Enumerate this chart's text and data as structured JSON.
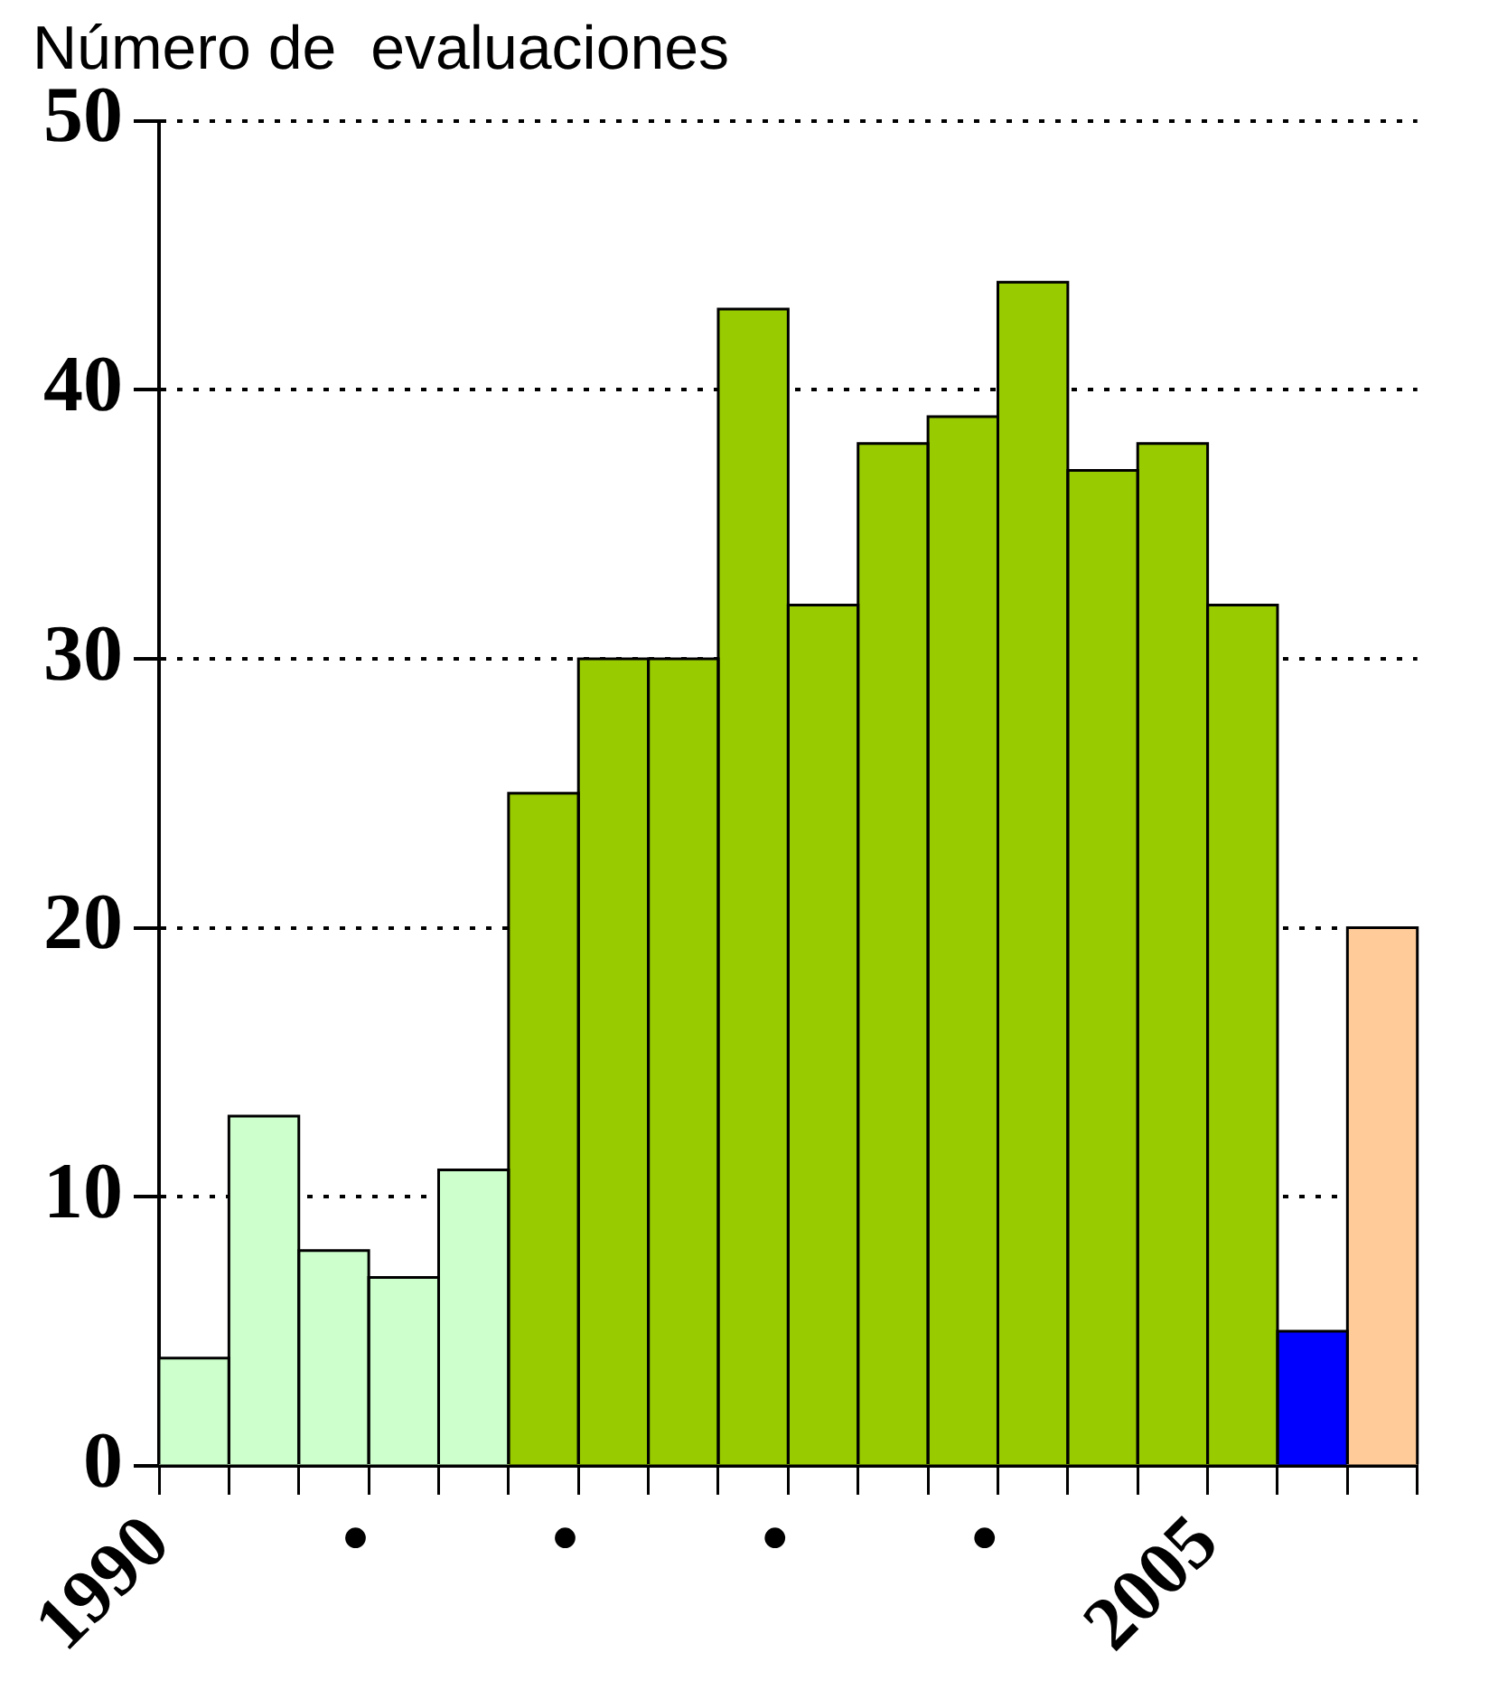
{
  "chart_data": {
    "type": "histogram",
    "title": "Número de  evaluaciones",
    "bins": [
      1990,
      1991,
      1992,
      1993,
      1994,
      1995,
      1996,
      1997,
      1998,
      1999,
      2000,
      2001,
      2002,
      2003,
      2004,
      2005,
      2006,
      2007,
      2008
    ],
    "values": [
      4,
      13,
      8,
      7,
      11,
      25,
      30,
      30,
      43,
      32,
      38,
      39,
      44,
      37,
      38,
      32,
      5,
      20
    ],
    "colors": [
      "#ccffcc",
      "#ccffcc",
      "#ccffcc",
      "#ccffcc",
      "#ccffcc",
      "#99cc00",
      "#99cc00",
      "#99cc00",
      "#99cc00",
      "#99cc00",
      "#99cc00",
      "#99cc00",
      "#99cc00",
      "#99cc00",
      "#99cc00",
      "#99cc00",
      "#0000ff",
      "#ffcc99"
    ],
    "xlim": [
      1990,
      2008
    ],
    "xticks": [
      1990,
      {
        "value": 1991,
        "label": null
      },
      {
        "value": 1992,
        "label": null
      },
      {
        "value": 1993,
        "label": "•"
      },
      {
        "value": 1994,
        "label": null
      },
      {
        "value": 1995,
        "label": null
      },
      {
        "value": 1996,
        "label": "•"
      },
      {
        "value": 1997,
        "label": null
      },
      {
        "value": 1998,
        "label": null
      },
      {
        "value": 1999,
        "label": "•"
      },
      {
        "value": 2000,
        "label": null
      },
      {
        "value": 2001,
        "label": null
      },
      {
        "value": 2002,
        "label": "•"
      },
      {
        "value": 2003,
        "label": null
      },
      {
        "value": 2004,
        "label": null
      },
      2005,
      {
        "value": 2006,
        "label": null
      },
      {
        "value": 2007,
        "label": null
      },
      {
        "value": 2008,
        "label": null
      }
    ],
    "ylim": [
      0,
      50
    ],
    "yticks": [
      0,
      10,
      20,
      30,
      40,
      50
    ],
    "grid": "y",
    "legend": false
  }
}
